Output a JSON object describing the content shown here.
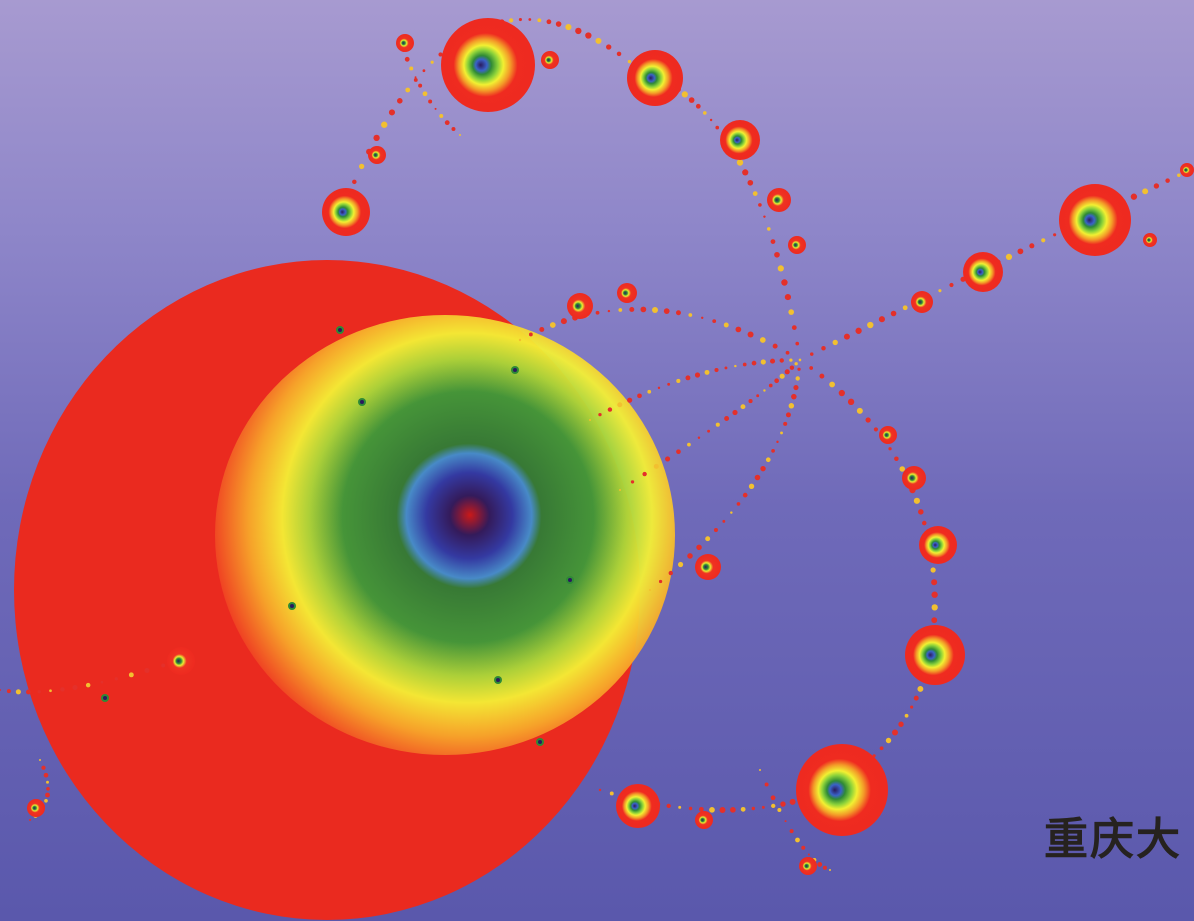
{
  "cover": {
    "publisher_text": "重庆大"
  },
  "colors": {
    "background_top": "#a79ad0",
    "background_bottom": "#5a58ac",
    "bulb_outer": "#ef2b20",
    "bulb_yellow": "#f2f032",
    "bulb_green": "#2f8a36",
    "bulb_blue": "#3f75d6",
    "bulb_core": "#2a1a5e",
    "publisher_text": "#26221f"
  }
}
